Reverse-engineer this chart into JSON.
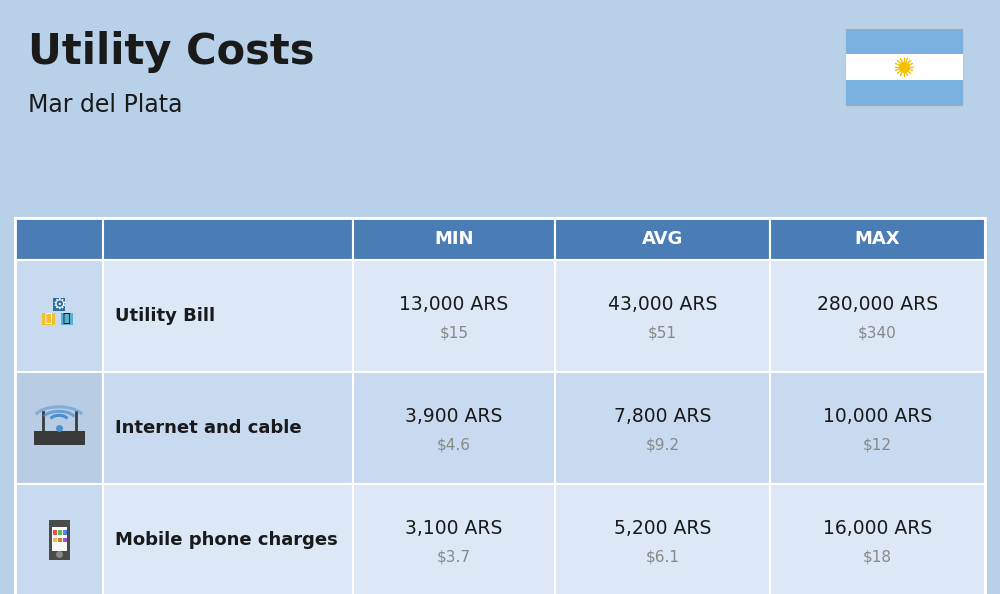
{
  "title": "Utility Costs",
  "subtitle": "Mar del Plata",
  "background_color": "#b8d0e8",
  "header_bg_color": "#4a7cb5",
  "header_text_color": "#ffffff",
  "row_bg_color_odd": "#dce8f5",
  "row_bg_color_even": "#c8daf0",
  "icon_col_bg_odd": "#c8daf0",
  "icon_col_bg_even": "#b8cce4",
  "table_border_color": "#ffffff",
  "col_headers": [
    "MIN",
    "AVG",
    "MAX"
  ],
  "rows": [
    {
      "label": "Utility Bill",
      "min_ars": "13,000 ARS",
      "min_usd": "$15",
      "avg_ars": "43,000 ARS",
      "avg_usd": "$51",
      "max_ars": "280,000 ARS",
      "max_usd": "$340"
    },
    {
      "label": "Internet and cable",
      "min_ars": "3,900 ARS",
      "min_usd": "$4.6",
      "avg_ars": "7,800 ARS",
      "avg_usd": "$9.2",
      "max_ars": "10,000 ARS",
      "max_usd": "$12"
    },
    {
      "label": "Mobile phone charges",
      "min_ars": "3,100 ARS",
      "min_usd": "$3.7",
      "avg_ars": "5,200 ARS",
      "avg_usd": "$6.1",
      "max_ars": "16,000 ARS",
      "max_usd": "$18"
    }
  ],
  "flag_stripe_color": "#7ab0e0",
  "flag_white": "#ffffff",
  "flag_sun_color": "#f5c000",
  "ars_fontsize": 13.5,
  "usd_fontsize": 11,
  "label_fontsize": 13,
  "header_fontsize": 13
}
